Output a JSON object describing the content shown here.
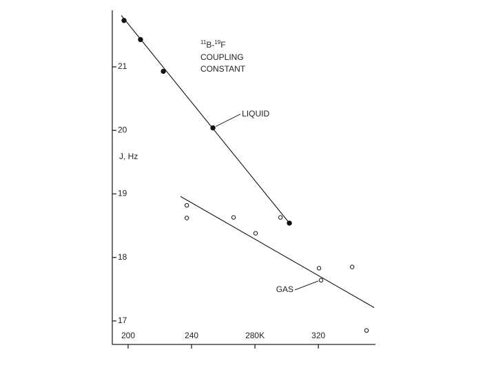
{
  "chart_data": {
    "type": "scatter",
    "title_prefix": [
      {
        "text": "11",
        "sup": true
      },
      {
        "text": "B-"
      },
      {
        "text": "19",
        "sup": true
      },
      {
        "text": "F"
      }
    ],
    "title": [
      "COUPLING",
      "CONSTANT"
    ],
    "y_label": "J, Hz",
    "xlim": [
      190,
      356
    ],
    "ylim": [
      16.63,
      21.89
    ],
    "xticks": [
      200,
      240,
      {
        "value": 280,
        "label": "280K"
      },
      320
    ],
    "yticks": [
      17,
      18,
      19,
      20,
      21
    ],
    "series": [
      {
        "name": "LIQUID",
        "color": "#111111",
        "marker": "filled",
        "x": [
          197.4,
          207.8,
          222.2,
          253.5,
          301.7
        ],
        "y": [
          21.73,
          21.43,
          20.93,
          20.04,
          18.54
        ],
        "fit": {
          "x": [
            195.7,
            301.7
          ],
          "y": [
            21.81,
            18.54
          ]
        }
      },
      {
        "name": "GAS",
        "color": "#111111",
        "marker": "open",
        "x": [
          237.0,
          237.0,
          266.5,
          280.4,
          296.1,
          320.4,
          321.7,
          341.3,
          350.4
        ],
        "y": [
          18.82,
          18.62,
          18.63,
          18.38,
          18.63,
          17.83,
          17.64,
          17.85,
          16.85
        ],
        "fit": {
          "x": [
            233.0,
            355.2
          ],
          "y": [
            18.96,
            17.21
          ]
        }
      }
    ]
  }
}
